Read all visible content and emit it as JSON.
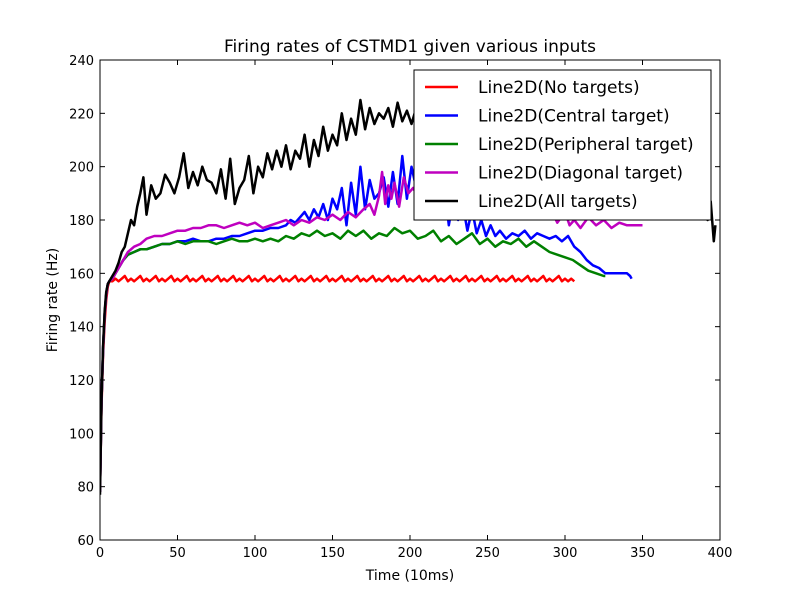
{
  "chart_data": {
    "type": "line",
    "title": "Firing rates of CSTMD1 given various inputs",
    "xlabel": "Time (10ms)",
    "ylabel": "Firing rate (Hz)",
    "xlim": [
      0,
      400
    ],
    "ylim": [
      60,
      240
    ],
    "xticks": [
      0,
      50,
      100,
      150,
      200,
      250,
      300,
      350,
      400
    ],
    "yticks": [
      60,
      80,
      100,
      120,
      140,
      160,
      180,
      200,
      220,
      240
    ],
    "grid": false,
    "legend_position": "top-right",
    "series": [
      {
        "name": "Line2D(No targets)",
        "color": "#ff0000",
        "x": [
          0,
          1,
          2,
          3,
          4,
          5,
          6,
          8,
          10,
          12,
          14,
          16,
          18,
          20,
          22,
          24,
          26,
          28,
          30,
          32,
          34,
          36,
          38,
          40,
          42,
          44,
          46,
          48,
          50,
          52,
          54,
          56,
          58,
          60,
          62,
          64,
          66,
          68,
          70,
          72,
          74,
          76,
          78,
          80,
          82,
          84,
          86,
          88,
          90,
          92,
          94,
          96,
          98,
          100,
          102,
          104,
          106,
          108,
          110,
          112,
          114,
          116,
          118,
          120,
          122,
          124,
          126,
          128,
          130,
          132,
          134,
          136,
          138,
          140,
          142,
          144,
          146,
          148,
          150,
          152,
          154,
          156,
          158,
          160,
          162,
          164,
          166,
          168,
          170,
          172,
          174,
          176,
          178,
          180,
          182,
          184,
          186,
          188,
          190,
          192,
          194,
          196,
          198,
          200,
          202,
          204,
          206,
          208,
          210,
          212,
          214,
          216,
          218,
          220,
          222,
          224,
          226,
          228,
          230,
          232,
          234,
          236,
          238,
          240,
          242,
          244,
          246,
          248,
          250,
          252,
          254,
          256,
          258,
          260,
          262,
          264,
          266,
          268,
          270,
          272,
          274,
          276,
          278,
          280,
          282,
          284,
          286,
          288,
          290,
          292,
          294,
          296,
          298,
          300,
          302,
          304,
          306
        ],
        "values": [
          78,
          110,
          130,
          142,
          150,
          155,
          157,
          157,
          158,
          157,
          158,
          159,
          157,
          158,
          157,
          158,
          159,
          157,
          158,
          157,
          158,
          159,
          157,
          158,
          157,
          158,
          159,
          157,
          158,
          157,
          158,
          159,
          157,
          158,
          157,
          158,
          159,
          157,
          158,
          157,
          158,
          159,
          157,
          158,
          157,
          158,
          159,
          157,
          158,
          157,
          158,
          159,
          157,
          158,
          157,
          158,
          159,
          157,
          158,
          157,
          158,
          159,
          157,
          158,
          157,
          158,
          159,
          157,
          158,
          157,
          158,
          159,
          157,
          158,
          157,
          158,
          159,
          157,
          158,
          157,
          158,
          159,
          157,
          158,
          157,
          158,
          159,
          157,
          158,
          157,
          158,
          159,
          157,
          158,
          157,
          158,
          159,
          157,
          158,
          157,
          158,
          159,
          157,
          158,
          157,
          158,
          159,
          157,
          158,
          157,
          158,
          159,
          157,
          158,
          157,
          158,
          159,
          157,
          158,
          157,
          158,
          159,
          157,
          158,
          157,
          158,
          159,
          157,
          158,
          157,
          158,
          159,
          157,
          158,
          157,
          158,
          159,
          157,
          158,
          157,
          158,
          159,
          157,
          158,
          157,
          158,
          159,
          157,
          158,
          157,
          158,
          159,
          157,
          158,
          157,
          158,
          157
        ]
      },
      {
        "name": "Line2D(Central target)",
        "color": "#0000ff",
        "x": [
          0,
          1,
          2,
          3,
          4,
          5,
          6,
          8,
          10,
          12,
          15,
          18,
          22,
          26,
          30,
          35,
          40,
          45,
          50,
          55,
          60,
          65,
          70,
          75,
          80,
          85,
          90,
          95,
          100,
          105,
          110,
          115,
          120,
          123,
          126,
          129,
          132,
          135,
          138,
          141,
          144,
          147,
          150,
          153,
          156,
          159,
          162,
          165,
          168,
          171,
          174,
          177,
          180,
          183,
          186,
          189,
          192,
          195,
          198,
          201,
          204,
          207,
          210,
          213,
          216,
          219,
          222,
          225,
          228,
          231,
          234,
          237,
          240,
          243,
          246,
          249,
          252,
          255,
          258,
          262,
          266,
          270,
          274,
          278,
          282,
          286,
          290,
          294,
          298,
          302,
          306,
          310,
          314,
          318,
          322,
          326,
          330,
          334,
          338,
          340,
          342,
          343
        ],
        "values": [
          78,
          112,
          132,
          145,
          152,
          156,
          157,
          158,
          160,
          162,
          165,
          167,
          168,
          169,
          169,
          170,
          171,
          171,
          172,
          172,
          173,
          172,
          172,
          173,
          173,
          174,
          174,
          175,
          176,
          176,
          177,
          177,
          178,
          180,
          179,
          181,
          183,
          180,
          184,
          181,
          186,
          180,
          188,
          184,
          192,
          178,
          194,
          182,
          200,
          184,
          195,
          188,
          190,
          196,
          185,
          198,
          186,
          204,
          188,
          200,
          192,
          195,
          190,
          198,
          189,
          185,
          194,
          178,
          188,
          180,
          186,
          176,
          184,
          175,
          180,
          174,
          178,
          174,
          176,
          173,
          175,
          174,
          176,
          173,
          175,
          174,
          173,
          174,
          172,
          174,
          170,
          168,
          165,
          163,
          162,
          160,
          160,
          160,
          160,
          160,
          159,
          158
        ]
      },
      {
        "name": "Line2D(Peripheral target)",
        "color": "#008000",
        "x": [
          0,
          1,
          2,
          3,
          4,
          5,
          6,
          8,
          10,
          12,
          15,
          18,
          22,
          26,
          30,
          35,
          40,
          45,
          50,
          55,
          60,
          65,
          70,
          75,
          80,
          85,
          90,
          95,
          100,
          105,
          110,
          115,
          120,
          125,
          130,
          135,
          140,
          145,
          150,
          155,
          160,
          165,
          170,
          175,
          180,
          185,
          190,
          195,
          200,
          205,
          210,
          215,
          220,
          225,
          230,
          235,
          240,
          245,
          250,
          255,
          260,
          265,
          270,
          275,
          280,
          285,
          290,
          295,
          300,
          305,
          310,
          315,
          320,
          325,
          326
        ],
        "values": [
          78,
          112,
          132,
          145,
          152,
          156,
          157,
          158,
          160,
          162,
          165,
          167,
          168,
          169,
          169,
          170,
          171,
          171,
          172,
          171,
          172,
          172,
          172,
          171,
          172,
          173,
          172,
          172,
          173,
          172,
          173,
          172,
          174,
          173,
          175,
          174,
          176,
          174,
          175,
          173,
          176,
          174,
          176,
          173,
          175,
          174,
          177,
          175,
          176,
          173,
          174,
          176,
          172,
          174,
          171,
          173,
          175,
          171,
          173,
          170,
          172,
          171,
          173,
          170,
          172,
          170,
          168,
          167,
          166,
          165,
          163,
          161,
          160,
          159,
          159
        ]
      },
      {
        "name": "Line2D(Diagonal target)",
        "color": "#bf00bf",
        "x": [
          0,
          1,
          2,
          3,
          4,
          5,
          6,
          8,
          10,
          12,
          15,
          18,
          22,
          26,
          30,
          35,
          40,
          45,
          50,
          55,
          60,
          65,
          70,
          75,
          80,
          85,
          90,
          95,
          100,
          105,
          110,
          115,
          120,
          125,
          130,
          135,
          140,
          145,
          150,
          155,
          160,
          165,
          170,
          174,
          177,
          180,
          182,
          184,
          186,
          188,
          190,
          193,
          196,
          199,
          202,
          206,
          210,
          215,
          220,
          225,
          230,
          235,
          240,
          245,
          250,
          255,
          260,
          265,
          270,
          275,
          280,
          285,
          290,
          295,
          300,
          303,
          306,
          310,
          315,
          320,
          325,
          330,
          335,
          340,
          345,
          350
        ],
        "values": [
          78,
          112,
          132,
          145,
          152,
          156,
          157,
          158,
          160,
          162,
          165,
          168,
          170,
          171,
          173,
          174,
          174,
          175,
          176,
          176,
          177,
          177,
          178,
          178,
          177,
          178,
          179,
          178,
          179,
          177,
          178,
          179,
          180,
          178,
          180,
          179,
          181,
          180,
          182,
          180,
          183,
          181,
          184,
          186,
          182,
          189,
          198,
          186,
          193,
          188,
          194,
          185,
          196,
          190,
          192,
          188,
          194,
          186,
          192,
          188,
          190,
          187,
          189,
          186,
          188,
          185,
          187,
          184,
          188,
          183,
          186,
          182,
          185,
          179,
          183,
          178,
          180,
          177,
          181,
          178,
          180,
          177,
          179,
          178,
          178,
          178
        ]
      },
      {
        "name": "Line2D(All targets)",
        "color": "#000000",
        "x": [
          0,
          1,
          2,
          3,
          4,
          5,
          6,
          8,
          10,
          12,
          14,
          16,
          18,
          20,
          22,
          24,
          26,
          28,
          30,
          33,
          36,
          39,
          42,
          45,
          48,
          51,
          54,
          57,
          60,
          63,
          66,
          69,
          72,
          75,
          78,
          81,
          84,
          87,
          90,
          93,
          96,
          99,
          102,
          105,
          108,
          111,
          114,
          117,
          120,
          123,
          126,
          129,
          132,
          135,
          138,
          141,
          144,
          147,
          150,
          153,
          156,
          159,
          162,
          165,
          168,
          171,
          174,
          177,
          180,
          183,
          186,
          189,
          192,
          195,
          198,
          201,
          204,
          207,
          210,
          213,
          216,
          219,
          222,
          225,
          228,
          231,
          234,
          237,
          240,
          244,
          248,
          252,
          256,
          260,
          265,
          270,
          275,
          280,
          285,
          290,
          295,
          300,
          305,
          310,
          315,
          320,
          325,
          330,
          335,
          340,
          345,
          350,
          355,
          360,
          365,
          370,
          375,
          380,
          383,
          386,
          389,
          392,
          394,
          396,
          397
        ],
        "values": [
          77,
          112,
          133,
          146,
          153,
          156,
          157,
          159,
          161,
          164,
          168,
          170,
          175,
          180,
          178,
          185,
          190,
          196,
          182,
          193,
          188,
          190,
          197,
          194,
          190,
          196,
          205,
          192,
          198,
          193,
          200,
          195,
          194,
          190,
          199,
          188,
          203,
          186,
          192,
          195,
          204,
          190,
          200,
          196,
          205,
          199,
          206,
          200,
          208,
          199,
          206,
          203,
          212,
          200,
          210,
          204,
          215,
          206,
          212,
          208,
          220,
          210,
          218,
          212,
          225,
          214,
          222,
          216,
          220,
          218,
          222,
          215,
          224,
          217,
          221,
          216,
          222,
          214,
          220,
          216,
          223,
          213,
          218,
          216,
          220,
          212,
          218,
          213,
          216,
          214,
          219,
          212,
          217,
          213,
          216,
          212,
          218,
          213,
          215,
          210,
          217,
          211,
          214,
          209,
          212,
          207,
          210,
          204,
          208,
          200,
          205,
          197,
          202,
          194,
          198,
          191,
          195,
          188,
          192,
          185,
          190,
          180,
          187,
          172,
          178
        ]
      }
    ]
  }
}
